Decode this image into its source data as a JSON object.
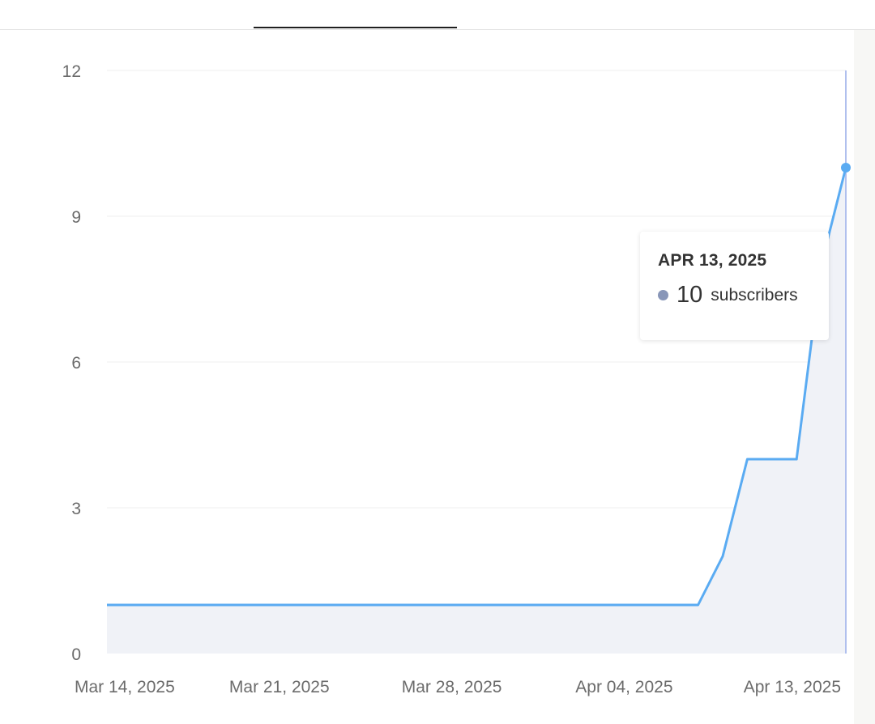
{
  "colors": {
    "line": "#5aabf2",
    "area": "#f0f2f7",
    "hover_line": "#b0c0ee",
    "grid": "#efefef",
    "tooltip_dot": "#8896b8"
  },
  "tooltip": {
    "date": "APR 13, 2025",
    "value": "10",
    "unit": "subscribers"
  },
  "chart_data": {
    "type": "area",
    "x": [
      "2025-03-14",
      "2025-03-15",
      "2025-03-16",
      "2025-03-17",
      "2025-03-18",
      "2025-03-19",
      "2025-03-20",
      "2025-03-21",
      "2025-03-22",
      "2025-03-23",
      "2025-03-24",
      "2025-03-25",
      "2025-03-26",
      "2025-03-27",
      "2025-03-28",
      "2025-03-29",
      "2025-03-30",
      "2025-03-31",
      "2025-04-01",
      "2025-04-02",
      "2025-04-03",
      "2025-04-04",
      "2025-04-05",
      "2025-04-06",
      "2025-04-07",
      "2025-04-08",
      "2025-04-09",
      "2025-04-10",
      "2025-04-11",
      "2025-04-12",
      "2025-04-13"
    ],
    "series": [
      {
        "values": [
          1,
          1,
          1,
          1,
          1,
          1,
          1,
          1,
          1,
          1,
          1,
          1,
          1,
          1,
          1,
          1,
          1,
          1,
          1,
          1,
          1,
          1,
          1,
          1,
          1,
          2,
          4,
          4,
          4,
          8,
          10
        ]
      }
    ],
    "xticks": [
      "Mar 14, 2025",
      "Mar 21, 2025",
      "Mar 28, 2025",
      "Apr 04, 2025",
      "Apr 13, 2025"
    ],
    "yticks": [
      "0",
      "3",
      "6",
      "9",
      "12"
    ],
    "ylim": [
      0,
      12
    ],
    "grid": true,
    "highlight_index": 30
  }
}
